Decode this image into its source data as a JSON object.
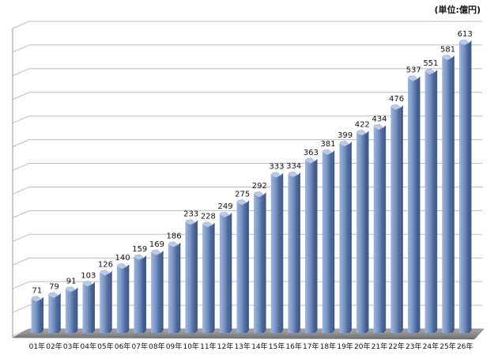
{
  "unit_label": "(単位:億円)",
  "chart_data": {
    "type": "bar",
    "title": "",
    "xlabel": "",
    "ylabel": "",
    "unit": "(単位:億円)",
    "categories": [
      "01年",
      "02年",
      "03年",
      "04年",
      "05年",
      "06年",
      "07年",
      "08年",
      "09年",
      "10年",
      "11年",
      "12年",
      "13年",
      "14年",
      "15年",
      "16年",
      "17年",
      "18年",
      "19年",
      "20年",
      "21年",
      "22年",
      "23年",
      "24年",
      "25年",
      "26年"
    ],
    "values": [
      71,
      79,
      91,
      103,
      126,
      140,
      159,
      169,
      186,
      233,
      228,
      249,
      275,
      292,
      333,
      334,
      363,
      381,
      399,
      422,
      434,
      476,
      537,
      551,
      581,
      613
    ],
    "ylim": [
      0,
      650
    ],
    "grid": true,
    "legend": "none",
    "colors": {
      "bar_front": "#6a86b8",
      "bar_dark": "#3f5a8c",
      "bar_light": "#9fb5dc",
      "bar_top": "#b9c9e6",
      "grid": "#bdbdbd",
      "floor": "#8c8c8c"
    }
  }
}
